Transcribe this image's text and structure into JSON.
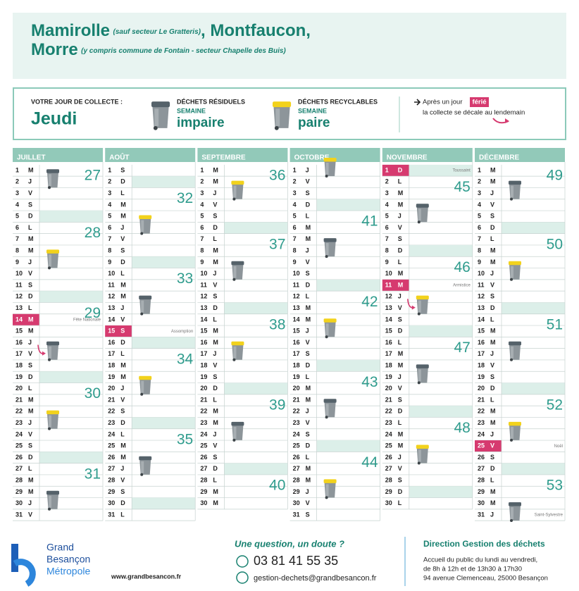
{
  "header": {
    "commune1": "Mamirolle",
    "note1": "(sauf secteur Le Gratteris)",
    "commune2": ", Montfaucon,",
    "commune3": "Morre",
    "note3": "(y compris commune de Fontain - secteur Chapelle des Buis)"
  },
  "info": {
    "collection_label": "VOTRE JOUR DE COLLECTE :",
    "collection_day": "Jeudi",
    "residual": {
      "title": "DÉCHETS RÉSIDUELS",
      "week_label": "SEMAINE",
      "week": "impaire"
    },
    "recyclable": {
      "title": "DÉCHETS RECYCLABLES",
      "week_label": "SEMAINE",
      "week": "paire"
    },
    "holiday_note": {
      "before": "Après un jour",
      "highlight": "férié",
      "after": "la collecte se décale au lendemain"
    }
  },
  "calendar": {
    "months": [
      {
        "name": "JUILLET",
        "dates": [
          1,
          2,
          3,
          4,
          5,
          6,
          7,
          8,
          9,
          10,
          11,
          12,
          13,
          14,
          15,
          16,
          17,
          18,
          19,
          20,
          21,
          22,
          23,
          24,
          25,
          26,
          27,
          28,
          29,
          30,
          31
        ],
        "letters": [
          "M",
          "J",
          "V",
          "S",
          "D",
          "L",
          "M",
          "M",
          "J",
          "V",
          "S",
          "D",
          "L",
          "M",
          "M",
          "J",
          "V",
          "S",
          "D",
          "L",
          "M",
          "M",
          "J",
          "V",
          "S",
          "D",
          "L",
          "M",
          "M",
          "J",
          "V"
        ],
        "weeks": [
          27,
          28,
          29,
          30,
          31
        ],
        "residual": [
          2,
          17,
          30
        ],
        "recyclable": [
          9,
          23
        ],
        "shifted": [
          17
        ],
        "holidays": [
          {
            "date": 14,
            "name": "Fête Nationale"
          }
        ]
      },
      {
        "name": "AOÛT",
        "dates": [
          1,
          2,
          3,
          4,
          5,
          6,
          7,
          8,
          9,
          10,
          11,
          12,
          13,
          14,
          15,
          16,
          17,
          18,
          19,
          20,
          21,
          22,
          23,
          24,
          25,
          26,
          27,
          28,
          29,
          30,
          31
        ],
        "letters": [
          "S",
          "D",
          "L",
          "M",
          "M",
          "J",
          "V",
          "S",
          "D",
          "L",
          "M",
          "M",
          "J",
          "V",
          "S",
          "D",
          "L",
          "M",
          "M",
          "J",
          "V",
          "S",
          "D",
          "L",
          "M",
          "M",
          "J",
          "V",
          "S",
          "D",
          "L"
        ],
        "weeks": [
          32,
          33,
          34,
          35
        ],
        "residual": [
          13,
          27
        ],
        "recyclable": [
          6,
          20
        ],
        "shifted": [],
        "holidays": [
          {
            "date": 15,
            "name": "Assomption"
          }
        ]
      },
      {
        "name": "SEPTEMBRE",
        "dates": [
          1,
          2,
          3,
          4,
          5,
          6,
          7,
          8,
          9,
          10,
          11,
          12,
          13,
          14,
          15,
          16,
          17,
          18,
          19,
          20,
          21,
          22,
          23,
          24,
          25,
          26,
          27,
          28,
          29,
          30
        ],
        "letters": [
          "M",
          "M",
          "J",
          "V",
          "S",
          "D",
          "L",
          "M",
          "M",
          "J",
          "V",
          "S",
          "D",
          "L",
          "M",
          "M",
          "J",
          "V",
          "S",
          "D",
          "L",
          "M",
          "M",
          "J",
          "V",
          "S",
          "D",
          "L",
          "M",
          "M"
        ],
        "weeks": [
          36,
          37,
          38,
          39,
          40
        ],
        "residual": [
          10,
          24
        ],
        "recyclable": [
          3,
          17
        ],
        "shifted": [],
        "holidays": []
      },
      {
        "name": "OCTOBRE",
        "dates": [
          1,
          2,
          3,
          4,
          5,
          6,
          7,
          8,
          9,
          10,
          11,
          12,
          13,
          14,
          15,
          16,
          17,
          18,
          19,
          20,
          21,
          22,
          23,
          24,
          25,
          26,
          27,
          28,
          29,
          30,
          31
        ],
        "letters": [
          "J",
          "V",
          "S",
          "D",
          "L",
          "M",
          "M",
          "J",
          "V",
          "S",
          "D",
          "L",
          "M",
          "M",
          "J",
          "V",
          "S",
          "D",
          "L",
          "M",
          "M",
          "J",
          "V",
          "S",
          "D",
          "L",
          "M",
          "M",
          "J",
          "V",
          "S"
        ],
        "weeks": [
          41,
          42,
          43,
          44
        ],
        "residual": [
          8,
          22
        ],
        "recyclable": [
          1,
          15,
          29
        ],
        "shifted": [],
        "holidays": []
      },
      {
        "name": "NOVEMBRE",
        "dates": [
          1,
          2,
          3,
          4,
          5,
          6,
          7,
          8,
          9,
          10,
          11,
          12,
          13,
          14,
          15,
          16,
          17,
          18,
          19,
          20,
          21,
          22,
          23,
          24,
          25,
          26,
          27,
          28,
          29,
          30
        ],
        "letters": [
          "D",
          "L",
          "M",
          "M",
          "J",
          "V",
          "S",
          "D",
          "L",
          "M",
          "M",
          "J",
          "V",
          "S",
          "D",
          "L",
          "M",
          "M",
          "J",
          "V",
          "S",
          "D",
          "L",
          "M",
          "M",
          "J",
          "V",
          "S",
          "D",
          "L"
        ],
        "weeks": [
          45,
          46,
          47,
          48
        ],
        "residual": [
          5,
          19
        ],
        "recyclable": [
          13,
          26
        ],
        "shifted": [
          13
        ],
        "holidays": [
          {
            "date": 1,
            "name": "Toussaint"
          },
          {
            "date": 11,
            "name": "Armistice"
          }
        ]
      },
      {
        "name": "DÉCEMBRE",
        "dates": [
          1,
          2,
          3,
          4,
          5,
          6,
          7,
          8,
          9,
          10,
          11,
          12,
          13,
          14,
          15,
          16,
          17,
          18,
          19,
          20,
          21,
          22,
          23,
          24,
          25,
          26,
          27,
          28,
          29,
          30,
          31
        ],
        "letters": [
          "M",
          "M",
          "J",
          "V",
          "S",
          "D",
          "L",
          "M",
          "M",
          "J",
          "V",
          "S",
          "D",
          "L",
          "M",
          "M",
          "J",
          "V",
          "S",
          "D",
          "L",
          "M",
          "M",
          "J",
          "V",
          "S",
          "D",
          "L",
          "M",
          "M",
          "J"
        ],
        "weeks": [
          49,
          50,
          51,
          52,
          53
        ],
        "residual": [
          3,
          17,
          31
        ],
        "recyclable": [
          10,
          24
        ],
        "shifted": [],
        "holidays": [
          {
            "date": 25,
            "name": "Noël"
          }
        ],
        "notes": [
          {
            "date": 31,
            "name": "Saint-Sylvestre"
          }
        ]
      }
    ]
  },
  "footer": {
    "logo": [
      "Grand",
      "Besançon",
      "Métropole"
    ],
    "website": "www.grandbesancon.fr",
    "question": "Une question, un doute ?",
    "phone": "03 81 41 55 35",
    "email": "gestion-dechets@grandbesancon.fr",
    "direction": "Direction Gestion des déchets",
    "hours": [
      "Accueil du public du lundi au vendredi,",
      "de 8h à 12h et de 13h30 à 17h30",
      "94 avenue Clemenceau, 25000 Besançon"
    ]
  }
}
